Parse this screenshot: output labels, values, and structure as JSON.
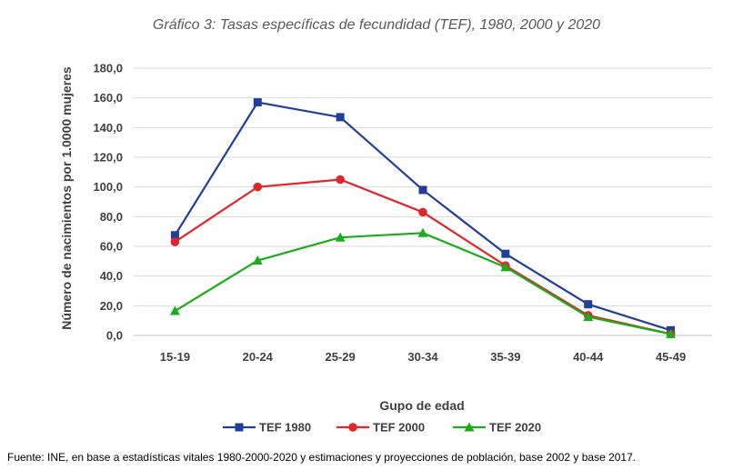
{
  "chart_data": {
    "type": "line",
    "title": "Gráfico 3: Tasas específicas de fecundidad (TEF), 1980, 2000 y 2020",
    "xlabel": "Gupo de edad",
    "ylabel": "Número de nacimientos por 1.0000 mujeres",
    "categories": [
      "15-19",
      "20-24",
      "25-29",
      "30-34",
      "35-39",
      "40-44",
      "45-49"
    ],
    "ylim": [
      0,
      180
    ],
    "yticks": [
      "0,0",
      "20,0",
      "40,0",
      "60,0",
      "80,0",
      "100,0",
      "120,0",
      "140,0",
      "160,0",
      "180,0"
    ],
    "grid": true,
    "legend_position": "bottom",
    "series": [
      {
        "name": "TEF 1980",
        "color": "#1f3f99",
        "marker": "square",
        "values": [
          67.5,
          157,
          147,
          98,
          55,
          21,
          3.5
        ]
      },
      {
        "name": "TEF 2000",
        "color": "#e0262a",
        "marker": "circle",
        "values": [
          63,
          100,
          105,
          83,
          47,
          13.5,
          1
        ]
      },
      {
        "name": "TEF 2020",
        "color": "#1aad1a",
        "marker": "triangle",
        "values": [
          16.5,
          50.5,
          66,
          69,
          46,
          12.5,
          1
        ]
      }
    ]
  },
  "source_note": "Fuente: INE, en base a estadísticas vitales 1980-2000-2020 y estimaciones y proyecciones de población, base 2002 y base 2017."
}
